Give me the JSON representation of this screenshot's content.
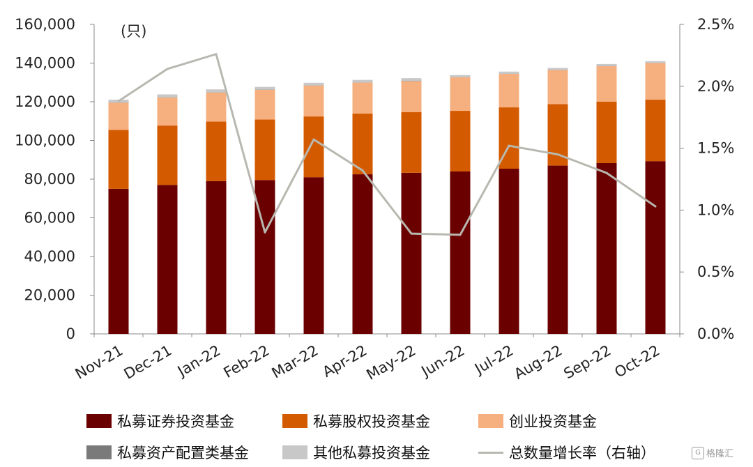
{
  "chart_data": {
    "type": "bar",
    "stacked": true,
    "categories": [
      "Nov-21",
      "Dec-21",
      "Jan-22",
      "Feb-22",
      "Mar-22",
      "Apr-22",
      "May-22",
      "Jun-22",
      "Jul-22",
      "Aug-22",
      "Sep-22",
      "Oct-22"
    ],
    "series": [
      {
        "name": "私募证券投资基金",
        "color": "#6b0000",
        "axis": "left",
        "values": [
          75000,
          77000,
          79000,
          79500,
          81000,
          82500,
          83300,
          84000,
          85400,
          87000,
          88300,
          89300
        ]
      },
      {
        "name": "私募股权投资基金",
        "color": "#d45a00",
        "axis": "left",
        "values": [
          30500,
          30700,
          30800,
          31300,
          31400,
          31400,
          31300,
          31300,
          31700,
          31800,
          31800,
          31800
        ]
      },
      {
        "name": "创业投资基金",
        "color": "#f6b080",
        "axis": "left",
        "values": [
          14000,
          14500,
          15000,
          15400,
          16000,
          16000,
          16100,
          17300,
          17300,
          17600,
          18300,
          18900
        ]
      },
      {
        "name": "私募资产配置类基金",
        "color": "#7a7a7a",
        "axis": "left",
        "values": [
          100,
          100,
          100,
          100,
          100,
          100,
          200,
          100,
          100,
          100,
          100,
          100
        ]
      },
      {
        "name": "其他私募投资基金",
        "color": "#c8c8c8",
        "axis": "left",
        "values": [
          1500,
          1500,
          1500,
          1400,
          1300,
          1300,
          1300,
          1100,
          1100,
          1000,
          1000,
          900
        ]
      },
      {
        "name": "总数量增长率（右轴）",
        "type": "line",
        "color": "#b8b8b0",
        "axis": "right",
        "values": [
          1.88,
          2.14,
          2.26,
          0.82,
          1.57,
          1.32,
          0.81,
          0.8,
          1.52,
          1.45,
          1.3,
          1.03
        ]
      }
    ],
    "ylabel_left": "(只)",
    "ylim_left": [
      0,
      160000
    ],
    "yticks_left": [
      "0",
      "20,000",
      "40,000",
      "60,000",
      "80,000",
      "100,000",
      "120,000",
      "140,000",
      "160,000"
    ],
    "ylim_right": [
      0,
      2.5
    ],
    "yticks_right": [
      "0.0%",
      "0.5%",
      "1.0%",
      "1.5%",
      "2.0%",
      "2.5%"
    ],
    "legend_position": "bottom",
    "grid": false
  },
  "watermark": {
    "icon_text": "G",
    "text": "格隆汇"
  }
}
